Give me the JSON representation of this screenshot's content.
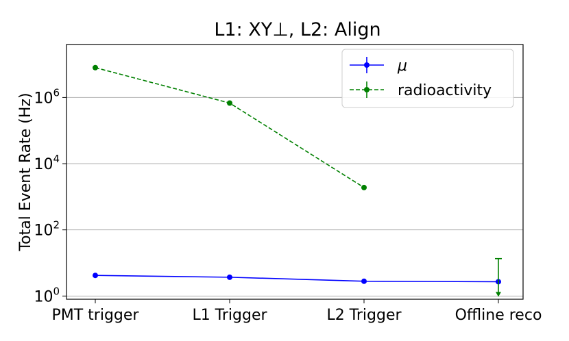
{
  "chart_data": {
    "type": "line",
    "title": "L1: XY⊥, L2: Align",
    "ylabel": "Total Event Rate (Hz)",
    "xlabel": "",
    "yscale": "log",
    "ylim": [
      0.8,
      40000000
    ],
    "grid": "horizontal",
    "legend_position": "top-right",
    "categories": [
      "PMT trigger",
      "L1 Trigger",
      "L2 Trigger",
      "Offline reco"
    ],
    "ytick_labels": [
      {
        "base": "10",
        "exp": "0",
        "value": 1
      },
      {
        "base": "10",
        "exp": "2",
        "value": 100
      },
      {
        "base": "10",
        "exp": "4",
        "value": 10000
      },
      {
        "base": "10",
        "exp": "6",
        "value": 1000000
      }
    ],
    "series": [
      {
        "name": "μ",
        "color": "#0000ff",
        "linestyle": "solid",
        "values": [
          4.2,
          3.7,
          2.8,
          2.7
        ]
      },
      {
        "name": "radioactivity",
        "color": "#008000",
        "linestyle": "dashed",
        "values": [
          8000000,
          680000,
          1900,
          null
        ],
        "upper_limit": {
          "category": "Offline reco",
          "from": 13.5,
          "to": 1
        }
      }
    ]
  }
}
